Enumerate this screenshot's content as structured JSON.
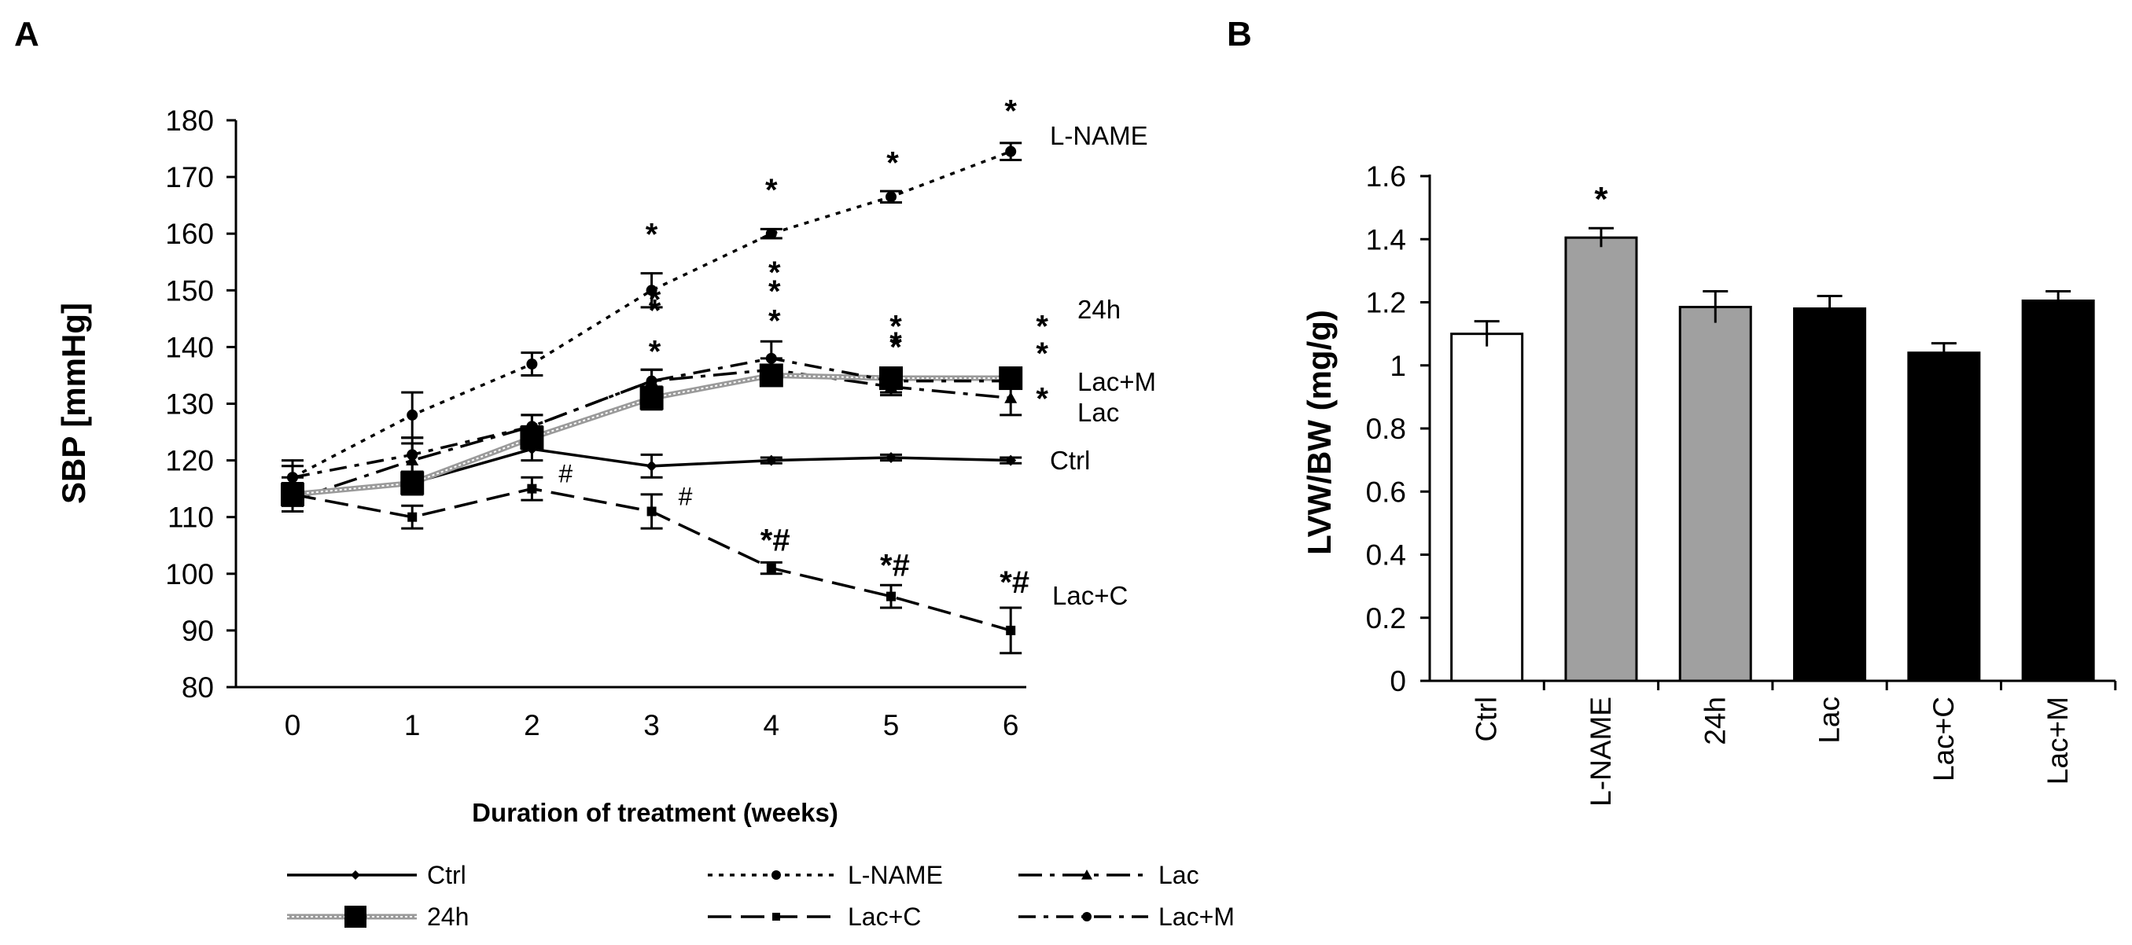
{
  "chart_data": [
    {
      "panel_label": "A",
      "type": "line",
      "xlabel": "Duration of treatment (weeks)",
      "ylabel": "SBP [mmHg]",
      "x": [
        0,
        1,
        2,
        3,
        4,
        5,
        6
      ],
      "xlim": [
        0,
        6
      ],
      "ylim": [
        80,
        180
      ],
      "yticks": [
        80,
        90,
        100,
        110,
        120,
        130,
        140,
        150,
        160,
        170,
        180
      ],
      "grid": false,
      "legend_position": "bottom",
      "series": [
        {
          "name": "Ctrl",
          "label": "Ctrl",
          "style": "solid-diamond",
          "values": [
            114,
            116,
            122,
            119,
            120,
            120.5,
            120
          ],
          "errors": [
            3,
            2,
            2,
            2,
            0.5,
            0.5,
            0.5
          ],
          "marks": [
            "",
            "",
            "",
            "",
            "",
            "",
            ""
          ]
        },
        {
          "name": "L-NAME",
          "label": "L-NAME",
          "style": "dotted-circle",
          "values": [
            117,
            128,
            137,
            150,
            160,
            166.5,
            174.5
          ],
          "errors": [
            2,
            4,
            2,
            3,
            0.8,
            1,
            1.5
          ],
          "marks": [
            "",
            "",
            "",
            "*",
            "*",
            "*",
            "*"
          ]
        },
        {
          "name": "Lac",
          "label": "Lac",
          "style": "dashdot-triangle",
          "values": [
            113,
            120,
            126,
            134,
            136,
            133,
            131
          ],
          "errors": [
            2,
            3,
            2,
            2,
            2,
            1.5,
            3
          ],
          "marks": [
            "",
            "",
            "",
            "*",
            "*",
            "*",
            "*"
          ]
        },
        {
          "name": "24h",
          "label": "24h",
          "style": "hatched-square",
          "values": [
            114,
            116,
            124,
            131,
            135,
            134.5,
            134.5
          ],
          "errors": [
            2,
            2,
            2,
            2,
            1.5,
            1,
            1
          ],
          "marks": [
            "",
            "",
            "",
            "*",
            "*",
            "*",
            "*"
          ]
        },
        {
          "name": "Lac+C",
          "label": "Lac+C",
          "style": "longdash-smallsquare",
          "values": [
            114,
            110,
            115,
            111,
            101,
            96,
            90
          ],
          "errors": [
            2,
            2,
            2,
            3,
            1,
            2,
            4
          ],
          "marks": [
            "",
            "",
            "#",
            "#",
            "*#",
            "*#",
            "*#"
          ]
        },
        {
          "name": "Lac+M",
          "label": "Lac+M",
          "style": "dashdot-circle",
          "values": [
            117,
            121,
            126,
            134,
            138,
            134,
            134
          ],
          "errors": [
            3,
            3,
            2,
            2,
            3,
            2,
            1
          ],
          "marks": [
            "",
            "",
            "",
            "*",
            "*",
            "*",
            "*"
          ]
        }
      ],
      "line_labels": [
        "L-NAME",
        "24h",
        "Lac+M",
        "Lac",
        "Ctrl",
        "Lac+C"
      ],
      "annotation_symbols": {
        "star": "*",
        "hash": "#"
      }
    },
    {
      "panel_label": "B",
      "type": "bar",
      "ylabel": "LVW/BW (mg/g)",
      "categories": [
        "Ctrl",
        "L-NAME",
        "24h",
        "Lac",
        "Lac+C",
        "Lac+M"
      ],
      "values": [
        1.1,
        1.405,
        1.185,
        1.18,
        1.04,
        1.205
      ],
      "errors": [
        0.04,
        0.03,
        0.05,
        0.04,
        0.03,
        0.03
      ],
      "fills": [
        "#ffffff",
        "#a0a0a0",
        "#a0a0a0",
        "#000000",
        "#000000",
        "#000000"
      ],
      "marks": [
        "",
        "*",
        "",
        "",
        "",
        ""
      ],
      "ylim": [
        0,
        1.6
      ],
      "yticks": [
        "0",
        "0.2",
        "0.4",
        "0.6",
        "0.8",
        "1",
        "1.2",
        "1.4",
        "1.6"
      ],
      "grid": false
    }
  ]
}
